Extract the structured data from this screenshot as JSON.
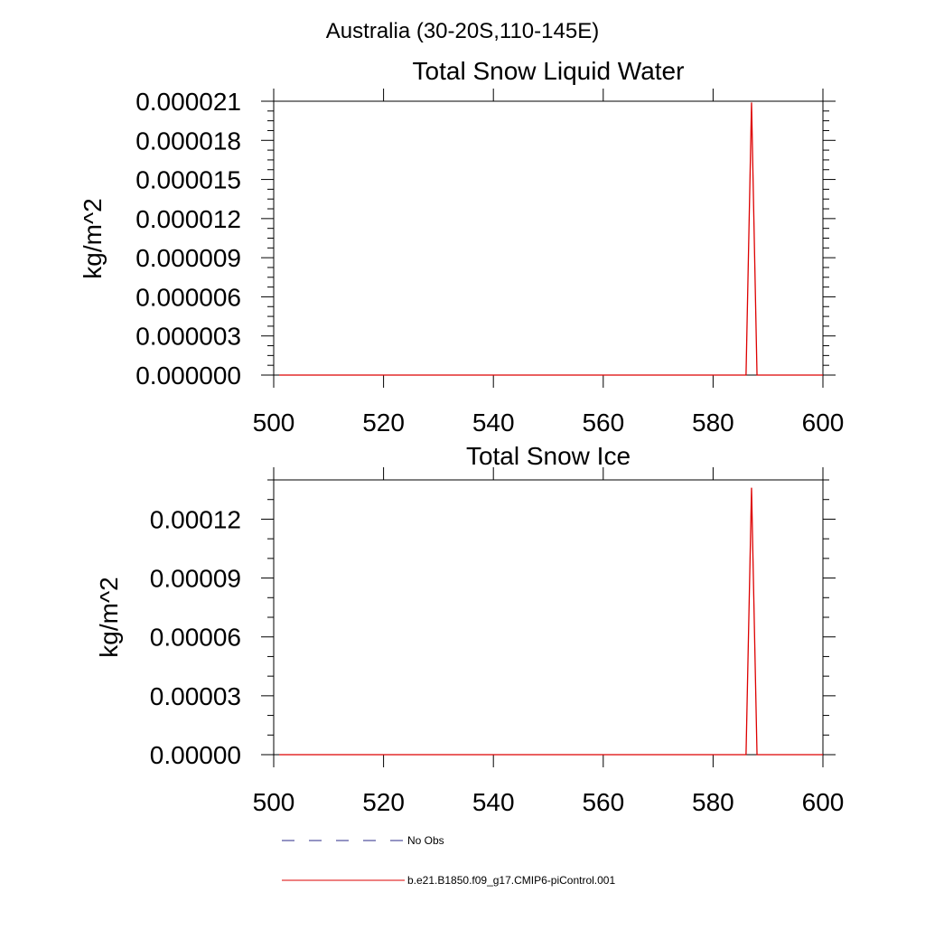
{
  "suptitle": "Australia (30-20S,110-145E)",
  "colors": {
    "no_obs": "#2a2a88",
    "model": "#dd0000",
    "axis": "#000000"
  },
  "chart_data": [
    {
      "type": "line",
      "title": "Total Snow Liquid Water",
      "xlabel": "",
      "ylabel": "kg/m^2",
      "xlim": [
        500,
        600
      ],
      "ylim": [
        0,
        2.1e-05
      ],
      "x_ticks": [
        500,
        520,
        540,
        560,
        580,
        600
      ],
      "x_tick_labels": [
        "500",
        "520",
        "540",
        "560",
        "580",
        "600"
      ],
      "y_ticks": [
        0,
        3e-06,
        6e-06,
        9e-06,
        1.2e-05,
        1.5e-05,
        1.8e-05,
        2.1e-05
      ],
      "y_tick_labels": [
        "0.000000",
        "0.000003",
        "0.000006",
        "0.000009",
        "0.000012",
        "0.000015",
        "0.000018",
        "0.000021"
      ],
      "y_minor_per_major": 3,
      "x_minor_per_major": 0,
      "series": [
        {
          "name": "b.e21.B1850.f09_g17.CMIP6-piControl.001",
          "color": "#dd0000",
          "x": [
            501,
            586,
            587,
            588,
            600
          ],
          "y": [
            0,
            0,
            2.09e-05,
            0,
            0
          ]
        }
      ]
    },
    {
      "type": "line",
      "title": "Total Snow Ice",
      "xlabel": "",
      "ylabel": "kg/m^2",
      "xlim": [
        500,
        600
      ],
      "ylim": [
        0,
        0.00014
      ],
      "x_ticks": [
        500,
        520,
        540,
        560,
        580,
        600
      ],
      "x_tick_labels": [
        "500",
        "520",
        "540",
        "560",
        "580",
        "600"
      ],
      "y_ticks": [
        0,
        3e-05,
        6e-05,
        9e-05,
        0.00012
      ],
      "y_tick_labels": [
        "0.00000",
        "0.00003",
        "0.00006",
        "0.00009",
        "0.00012"
      ],
      "y_minor_per_major": 2,
      "x_minor_per_major": 0,
      "series": [
        {
          "name": "b.e21.B1850.f09_g17.CMIP6-piControl.001",
          "color": "#dd0000",
          "x": [
            501,
            586,
            587,
            588,
            600
          ],
          "y": [
            0,
            0,
            0.000136,
            0,
            0
          ]
        }
      ]
    }
  ],
  "legend": {
    "placement": "bottom-left",
    "entries": [
      {
        "label": "No Obs",
        "color": "#2a2a88",
        "style": "dashed"
      },
      {
        "label": "b.e21.B1850.f09_g17.CMIP6-piControl.001",
        "color": "#dd0000",
        "style": "solid"
      }
    ]
  }
}
